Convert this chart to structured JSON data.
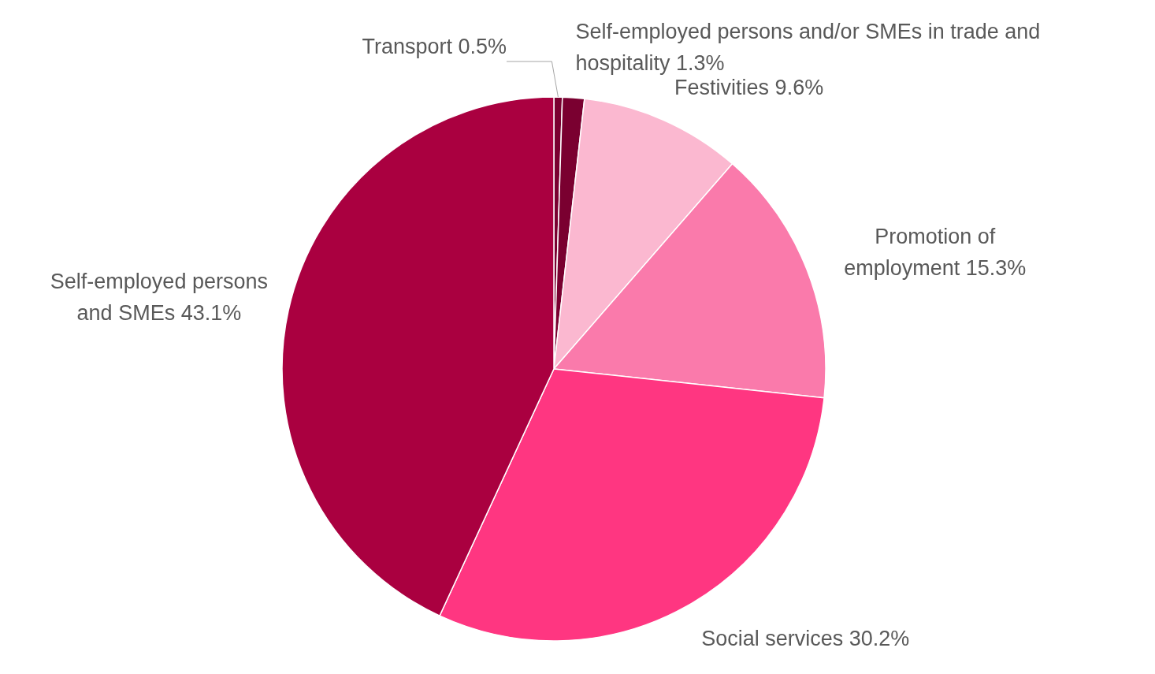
{
  "chart_data": {
    "type": "pie",
    "categories": [
      "Transport",
      "Self-employed persons and/or SMEs in trade and hospitality",
      "Festivities",
      "Promotion of employment",
      "Social services",
      "Self-employed persons and SMEs"
    ],
    "values": [
      0.5,
      1.3,
      9.6,
      15.3,
      30.2,
      43.1
    ],
    "value_labels": [
      "0.5%",
      "1.3%",
      "9.6%",
      "15.3%",
      "30.2%",
      "43.1%"
    ],
    "colors": [
      "#7a0030",
      "#7a0030",
      "#fbb8d0",
      "#fa7aab",
      "#ff3681",
      "#aa0040"
    ]
  }
}
